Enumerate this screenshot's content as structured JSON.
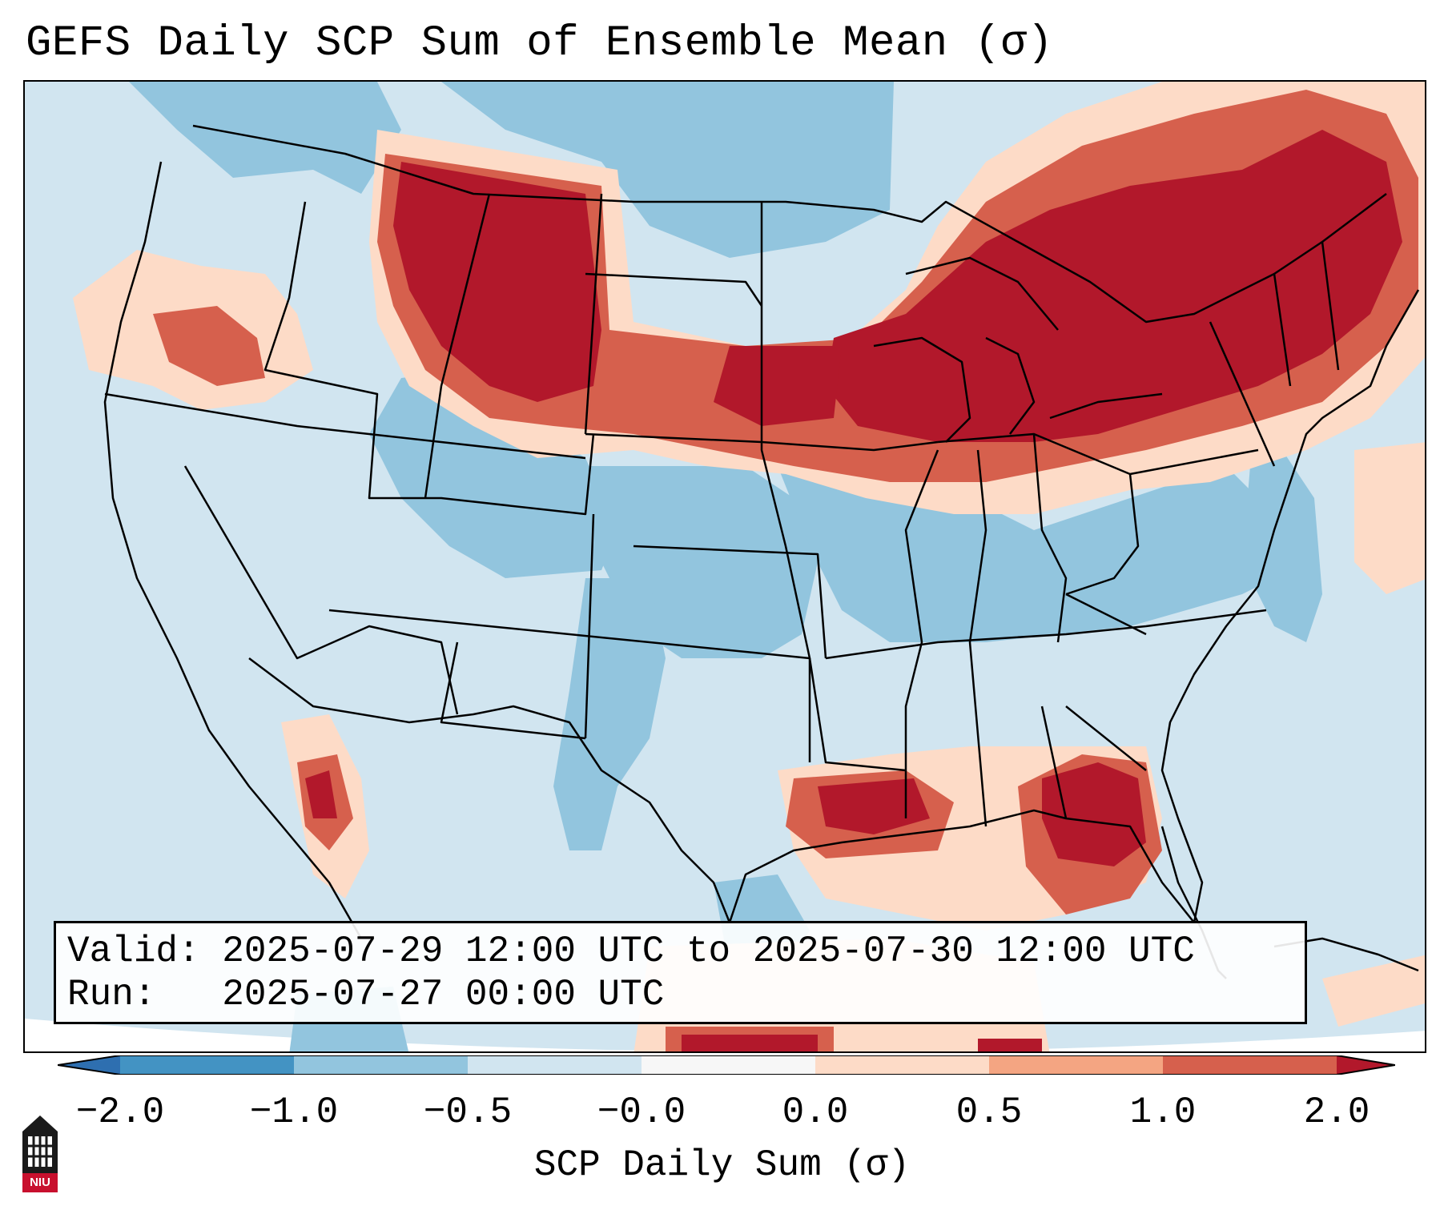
{
  "title": "GEFS Daily SCP Sum of Ensemble Mean (σ)",
  "info": {
    "valid_label": "Valid:",
    "valid_value": "2025-07-29 12:00 UTC to 2025-07-30 12:00 UTC",
    "run_label": "Run:",
    "run_value": "2025-07-27 00:00 UTC"
  },
  "colorbar": {
    "label": "SCP Daily Sum (σ)",
    "tick_labels": [
      "−2.0",
      "−1.0",
      "−0.5",
      "−0.0",
      "0.0",
      "0.5",
      "1.0",
      "2.0"
    ],
    "colors": {
      "extend_low": "#2e6fb0",
      "bin_-2_-1": "#4393c3",
      "bin_-1_-05": "#92c5de",
      "bin_-05_0": "#d1e5f0",
      "bin_0_0": "#f7f7f7",
      "bin_0_05": "#fddbc7",
      "bin_05_1": "#f4a582",
      "bin_1_2": "#d6604d",
      "extend_high": "#b2182b"
    }
  },
  "map": {
    "region": "Contiguous United States",
    "colors": {
      "background": "#d1e5f0",
      "light_blue": "#92c5de",
      "medium_blue": "#4393c3",
      "light_red": "#fddbc7",
      "medium_red": "#d6604d",
      "dark_red": "#b2182b",
      "salmon": "#f4a582",
      "outline": "#000000"
    }
  },
  "logo": {
    "text": "NIU",
    "icon": "university-tower-icon"
  }
}
